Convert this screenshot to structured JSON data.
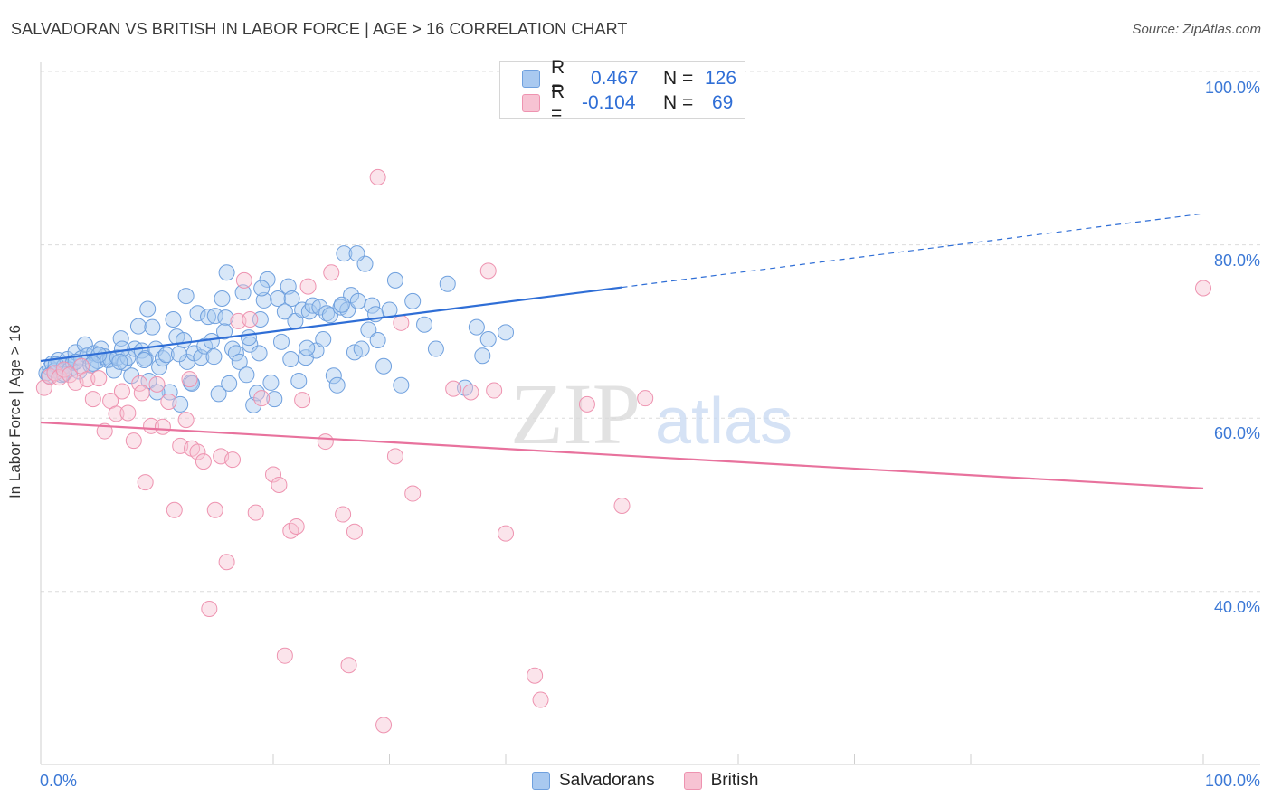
{
  "title": "SALVADORAN VS BRITISH IN LABOR FORCE | AGE > 16 CORRELATION CHART",
  "source": "Source: ZipAtlas.com",
  "watermark": {
    "zip": "ZIP",
    "atlas": "atlas"
  },
  "legend": {
    "r_label": "R =",
    "n_label": "N =",
    "rows": [
      {
        "series": "Salvadorans",
        "r": "0.467",
        "n": "126",
        "color": "#6fa0de"
      },
      {
        "series": "British",
        "r": "-0.104",
        "n": "69",
        "color": "#ee93b0"
      }
    ]
  },
  "colors": {
    "blue": "#2f6ed6",
    "pink": "#e8729d",
    "grid": "#dddddd",
    "tick_text": "#3b78d6"
  },
  "chart_data": {
    "type": "scatter",
    "title": "SALVADORAN VS BRITISH IN LABOR FORCE | AGE > 16 CORRELATION CHART",
    "xlabel": "",
    "ylabel": "In Labor Force | Age > 16",
    "xlim": [
      0,
      100
    ],
    "ylim": [
      20,
      100
    ],
    "x_tick_labels": [
      "0.0%",
      "100.0%"
    ],
    "y_tick_labels": [
      "100.0%",
      "80.0%",
      "60.0%",
      "40.0%"
    ],
    "y_ticks": [
      100,
      80,
      60,
      40
    ],
    "grid": true,
    "legend_position": "bottom-center",
    "series": [
      {
        "name": "Salvadorans",
        "color": "#6fa0de",
        "trend": {
          "x0": 0,
          "y0": 66.6,
          "x1": 50,
          "y1": 75.1,
          "dash_to_x": 100,
          "dash_to_y": 83.6
        },
        "points": [
          [
            0.5,
            65.2
          ],
          [
            0.8,
            65.8
          ],
          [
            1.0,
            66.3
          ],
          [
            1.2,
            65.5
          ],
          [
            1.5,
            66.7
          ],
          [
            1.8,
            65.0
          ],
          [
            2.0,
            66.0
          ],
          [
            2.3,
            66.8
          ],
          [
            2.5,
            65.6
          ],
          [
            2.8,
            66.4
          ],
          [
            3.0,
            67.6
          ],
          [
            3.3,
            65.4
          ],
          [
            3.5,
            66.9
          ],
          [
            3.8,
            68.5
          ],
          [
            4.0,
            67.2
          ],
          [
            4.3,
            66.1
          ],
          [
            4.6,
            67.5
          ],
          [
            4.9,
            66.6
          ],
          [
            5.2,
            68.0
          ],
          [
            5.5,
            67.1
          ],
          [
            5.8,
            66.7
          ],
          [
            6.0,
            66.8
          ],
          [
            6.3,
            65.5
          ],
          [
            6.6,
            67.0
          ],
          [
            6.9,
            69.2
          ],
          [
            7.2,
            66.4
          ],
          [
            7.5,
            67.0
          ],
          [
            7.8,
            64.9
          ],
          [
            8.1,
            68.0
          ],
          [
            8.4,
            70.6
          ],
          [
            8.7,
            67.8
          ],
          [
            9.0,
            66.9
          ],
          [
            9.3,
            64.3
          ],
          [
            9.6,
            70.5
          ],
          [
            9.9,
            68.0
          ],
          [
            10.2,
            65.9
          ],
          [
            10.5,
            66.9
          ],
          [
            10.8,
            67.3
          ],
          [
            11.1,
            63.0
          ],
          [
            11.4,
            71.4
          ],
          [
            11.7,
            69.4
          ],
          [
            12.0,
            61.6
          ],
          [
            12.3,
            69.0
          ],
          [
            12.6,
            66.5
          ],
          [
            12.9,
            64.1
          ],
          [
            13.2,
            67.5
          ],
          [
            13.5,
            72.1
          ],
          [
            13.8,
            67.0
          ],
          [
            14.1,
            68.3
          ],
          [
            14.4,
            71.7
          ],
          [
            14.7,
            68.9
          ],
          [
            15.0,
            71.8
          ],
          [
            15.3,
            62.8
          ],
          [
            15.6,
            73.8
          ],
          [
            15.9,
            71.6
          ],
          [
            16.2,
            64.0
          ],
          [
            16.5,
            68.0
          ],
          [
            16.8,
            67.5
          ],
          [
            17.1,
            66.5
          ],
          [
            17.4,
            74.5
          ],
          [
            17.7,
            65.0
          ],
          [
            18.0,
            68.5
          ],
          [
            18.3,
            61.5
          ],
          [
            18.6,
            62.9
          ],
          [
            18.9,
            71.4
          ],
          [
            19.2,
            73.6
          ],
          [
            19.5,
            76.0
          ],
          [
            19.8,
            64.1
          ],
          [
            20.1,
            62.2
          ],
          [
            20.4,
            73.8
          ],
          [
            20.7,
            68.8
          ],
          [
            21.0,
            72.3
          ],
          [
            21.3,
            75.2
          ],
          [
            21.6,
            73.8
          ],
          [
            21.9,
            71.2
          ],
          [
            22.2,
            64.3
          ],
          [
            22.5,
            72.5
          ],
          [
            22.8,
            67.0
          ],
          [
            23.1,
            72.3
          ],
          [
            23.4,
            73.0
          ],
          [
            23.7,
            67.8
          ],
          [
            24.0,
            72.8
          ],
          [
            24.3,
            69.1
          ],
          [
            24.6,
            72.1
          ],
          [
            24.9,
            71.9
          ],
          [
            25.2,
            64.9
          ],
          [
            25.5,
            63.8
          ],
          [
            25.8,
            72.8
          ],
          [
            26.1,
            79.0
          ],
          [
            26.4,
            72.5
          ],
          [
            26.7,
            74.2
          ],
          [
            27.0,
            67.6
          ],
          [
            27.3,
            73.5
          ],
          [
            27.6,
            68.0
          ],
          [
            27.9,
            77.8
          ],
          [
            28.2,
            70.2
          ],
          [
            28.5,
            73.0
          ],
          [
            29.0,
            69.0
          ],
          [
            29.5,
            66.0
          ],
          [
            30.0,
            72.5
          ],
          [
            30.5,
            75.9
          ],
          [
            31.0,
            63.8
          ],
          [
            32.0,
            73.5
          ],
          [
            33.0,
            70.8
          ],
          [
            34.0,
            68.0
          ],
          [
            35.0,
            75.5
          ],
          [
            36.5,
            63.5
          ],
          [
            37.5,
            70.5
          ],
          [
            38.0,
            67.2
          ],
          [
            38.5,
            69.1
          ],
          [
            40.0,
            69.9
          ],
          [
            16.0,
            76.8
          ],
          [
            21.5,
            66.8
          ],
          [
            19.0,
            75.0
          ],
          [
            13.0,
            64.0
          ],
          [
            10.0,
            63.0
          ],
          [
            7.0,
            68.0
          ],
          [
            5.0,
            67.3
          ],
          [
            3.0,
            66.5
          ],
          [
            2.0,
            65.1
          ],
          [
            1.3,
            66.2
          ],
          [
            0.7,
            64.9
          ],
          [
            4.5,
            66.3
          ],
          [
            6.8,
            66.5
          ],
          [
            8.9,
            66.7
          ],
          [
            11.9,
            67.4
          ],
          [
            14.9,
            67.1
          ],
          [
            17.9,
            69.3
          ],
          [
            22.9,
            68.1
          ],
          [
            25.9,
            73.1
          ],
          [
            9.2,
            72.6
          ],
          [
            12.5,
            74.1
          ],
          [
            15.8,
            70.0
          ],
          [
            18.8,
            67.5
          ],
          [
            28.8,
            72.0
          ],
          [
            27.2,
            79.0
          ]
        ]
      },
      {
        "name": "British",
        "color": "#ee93b0",
        "trend": {
          "x0": 0,
          "y0": 59.5,
          "x1": 100,
          "y1": 51.9
        },
        "points": [
          [
            0.3,
            63.5
          ],
          [
            0.8,
            64.8
          ],
          [
            1.2,
            65.2
          ],
          [
            1.6,
            64.7
          ],
          [
            2.0,
            65.6
          ],
          [
            2.5,
            65.0
          ],
          [
            3.0,
            64.1
          ],
          [
            3.5,
            66.0
          ],
          [
            4.0,
            64.5
          ],
          [
            4.5,
            62.2
          ],
          [
            5.0,
            64.6
          ],
          [
            5.5,
            58.5
          ],
          [
            6.0,
            62.0
          ],
          [
            6.5,
            60.5
          ],
          [
            7.0,
            63.1
          ],
          [
            7.5,
            60.6
          ],
          [
            8.0,
            57.4
          ],
          [
            8.5,
            64.0
          ],
          [
            9.0,
            52.6
          ],
          [
            9.5,
            59.1
          ],
          [
            10.0,
            63.9
          ],
          [
            10.5,
            59.0
          ],
          [
            11.0,
            61.9
          ],
          [
            11.5,
            49.4
          ],
          [
            12.0,
            56.8
          ],
          [
            12.5,
            59.8
          ],
          [
            13.0,
            56.5
          ],
          [
            13.5,
            56.1
          ],
          [
            14.0,
            55.0
          ],
          [
            14.5,
            38.0
          ],
          [
            15.0,
            49.4
          ],
          [
            15.5,
            55.6
          ],
          [
            16.0,
            43.4
          ],
          [
            16.5,
            55.2
          ],
          [
            17.0,
            71.2
          ],
          [
            17.5,
            75.9
          ],
          [
            18.0,
            71.4
          ],
          [
            18.5,
            49.1
          ],
          [
            19.0,
            62.3
          ],
          [
            20.0,
            53.5
          ],
          [
            20.5,
            52.3
          ],
          [
            21.0,
            32.6
          ],
          [
            21.5,
            47.0
          ],
          [
            22.0,
            47.5
          ],
          [
            22.5,
            62.1
          ],
          [
            23.0,
            75.2
          ],
          [
            24.5,
            57.3
          ],
          [
            25.0,
            76.8
          ],
          [
            26.0,
            48.9
          ],
          [
            26.5,
            31.5
          ],
          [
            27.0,
            46.9
          ],
          [
            29.0,
            87.8
          ],
          [
            29.5,
            24.6
          ],
          [
            30.5,
            55.6
          ],
          [
            31.0,
            71.0
          ],
          [
            32.0,
            51.3
          ],
          [
            35.5,
            63.4
          ],
          [
            37.0,
            63.0
          ],
          [
            38.5,
            77.0
          ],
          [
            39.0,
            63.2
          ],
          [
            40.0,
            46.7
          ],
          [
            42.5,
            30.3
          ],
          [
            43.0,
            27.5
          ],
          [
            47.0,
            61.6
          ],
          [
            50.0,
            49.9
          ],
          [
            52.0,
            62.3
          ],
          [
            100.0,
            75.0
          ],
          [
            8.7,
            62.9
          ],
          [
            12.8,
            64.5
          ]
        ]
      }
    ]
  },
  "bottom_legend": [
    {
      "label": "Salvadorans",
      "color": "#a9c9f0"
    },
    {
      "label": "British",
      "color": "#f7c3d3"
    }
  ]
}
